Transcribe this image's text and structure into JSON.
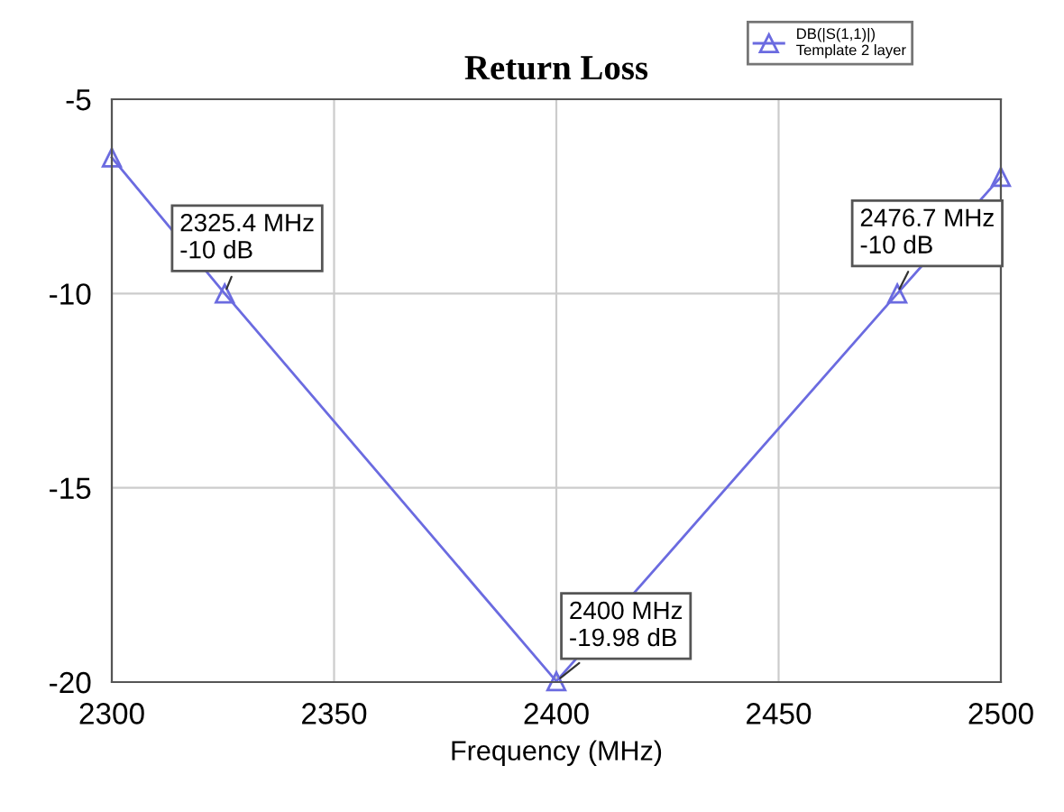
{
  "chart_data": {
    "type": "line",
    "title": "Return Loss",
    "xlabel": "Frequency (MHz)",
    "x": [
      2300,
      2325.4,
      2400,
      2476.7,
      2500
    ],
    "series": [
      {
        "name": "DB(|S(1,1)|)\nTemplate 2 layer",
        "color": "#6b6be0",
        "values": [
          -6.5,
          -10,
          -19.98,
          -10,
          -7
        ]
      }
    ],
    "xlim": [
      2300,
      2500
    ],
    "xticks": [
      2300,
      2350,
      2400,
      2450,
      2500
    ],
    "ylim": [
      -20,
      -5
    ],
    "yticks": [
      -20,
      -15,
      -10,
      -5
    ],
    "grid": true,
    "legend": "top right",
    "marker": "triangle",
    "line_style": "solid",
    "annotations": [
      {
        "text": "2325.4 MHz\n-10 dB",
        "x": 2325.4,
        "y": -10
      },
      {
        "text": "2400 MHz\n-19.98 dB",
        "x": 2400,
        "y": -19.98
      },
      {
        "text": "2476.7 MHz\n-10 dB",
        "x": 2476.7,
        "y": -10
      }
    ]
  }
}
